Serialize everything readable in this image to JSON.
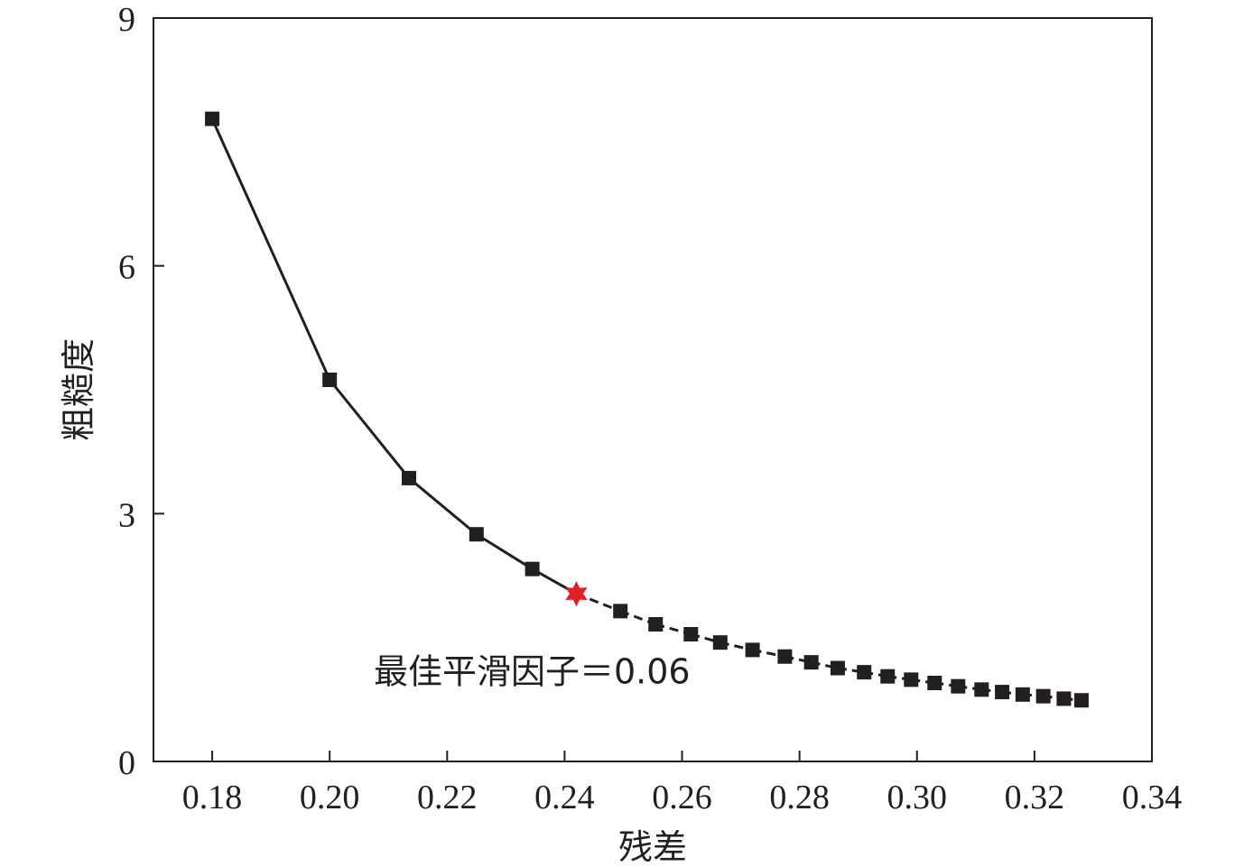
{
  "chart_data": {
    "type": "line",
    "xlabel": "残差",
    "ylabel": "粗糙度",
    "xlim": [
      0.17,
      0.34
    ],
    "ylim": [
      0,
      9
    ],
    "x_ticks": [
      0.18,
      0.2,
      0.22,
      0.24,
      0.26,
      0.28,
      0.3,
      0.32,
      0.34
    ],
    "x_tick_labels": [
      "0.18",
      "0.20",
      "0.22",
      "0.24",
      "0.26",
      "0.28",
      "0.30",
      "0.32",
      "0.34"
    ],
    "y_ticks": [
      0,
      3,
      6,
      9
    ],
    "y_tick_labels": [
      "0",
      "3",
      "6",
      "9"
    ],
    "grid": false,
    "series": [
      {
        "marker": "square",
        "color": "#231f20",
        "points": [
          [
            0.18,
            7.78
          ],
          [
            0.2,
            4.62
          ],
          [
            0.2135,
            3.43
          ],
          [
            0.225,
            2.75
          ],
          [
            0.2345,
            2.33
          ],
          [
            0.2495,
            1.82
          ],
          [
            0.2555,
            1.66
          ],
          [
            0.2615,
            1.54
          ],
          [
            0.2665,
            1.44
          ],
          [
            0.272,
            1.35
          ],
          [
            0.2775,
            1.27
          ],
          [
            0.282,
            1.2
          ],
          [
            0.2865,
            1.13
          ],
          [
            0.291,
            1.08
          ],
          [
            0.295,
            1.03
          ],
          [
            0.299,
            0.99
          ],
          [
            0.303,
            0.95
          ],
          [
            0.307,
            0.91
          ],
          [
            0.311,
            0.87
          ],
          [
            0.3145,
            0.84
          ],
          [
            0.318,
            0.81
          ],
          [
            0.3215,
            0.79
          ],
          [
            0.325,
            0.76
          ],
          [
            0.328,
            0.74
          ]
        ]
      }
    ],
    "highlight": {
      "x": 0.242,
      "y": 2.03,
      "marker": "star",
      "color": "#e31e24"
    },
    "annotation": {
      "text": "最佳平滑因子＝0.06",
      "x": 0.2075,
      "y": 1.1
    }
  }
}
